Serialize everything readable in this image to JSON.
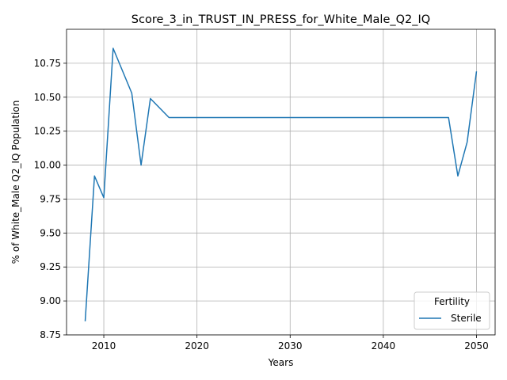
{
  "chart_data": {
    "type": "line",
    "title": "Score_3_in_TRUST_IN_PRESS_for_White_Male_Q2_IQ",
    "xlabel": "Years",
    "ylabel": "% of White_Male Q2_IQ Population",
    "xlim": [
      2006,
      2052
    ],
    "ylim": [
      8.75,
      11.0
    ],
    "xticks": [
      2010,
      2020,
      2030,
      2040,
      2050
    ],
    "yticks": [
      8.75,
      9.0,
      9.25,
      9.5,
      9.75,
      10.0,
      10.25,
      10.5,
      10.75
    ],
    "ytick_labels": [
      "8.75",
      "9.00",
      "9.25",
      "9.50",
      "9.75",
      "10.00",
      "10.25",
      "10.50",
      "10.75"
    ],
    "grid": true,
    "legend": {
      "title": "Fertility",
      "placement": "lower-right"
    },
    "series": [
      {
        "name": "Sterile",
        "color": "#1f77b4",
        "x": [
          2008,
          2009,
          2010,
          2011,
          2013,
          2014,
          2015,
          2017,
          2020,
          2025,
          2030,
          2035,
          2040,
          2045,
          2047,
          2048,
          2049,
          2050
        ],
        "y": [
          8.85,
          9.92,
          9.76,
          10.86,
          10.53,
          10.0,
          10.49,
          10.35,
          10.35,
          10.35,
          10.35,
          10.35,
          10.35,
          10.35,
          10.35,
          9.92,
          10.17,
          10.69
        ]
      }
    ]
  }
}
